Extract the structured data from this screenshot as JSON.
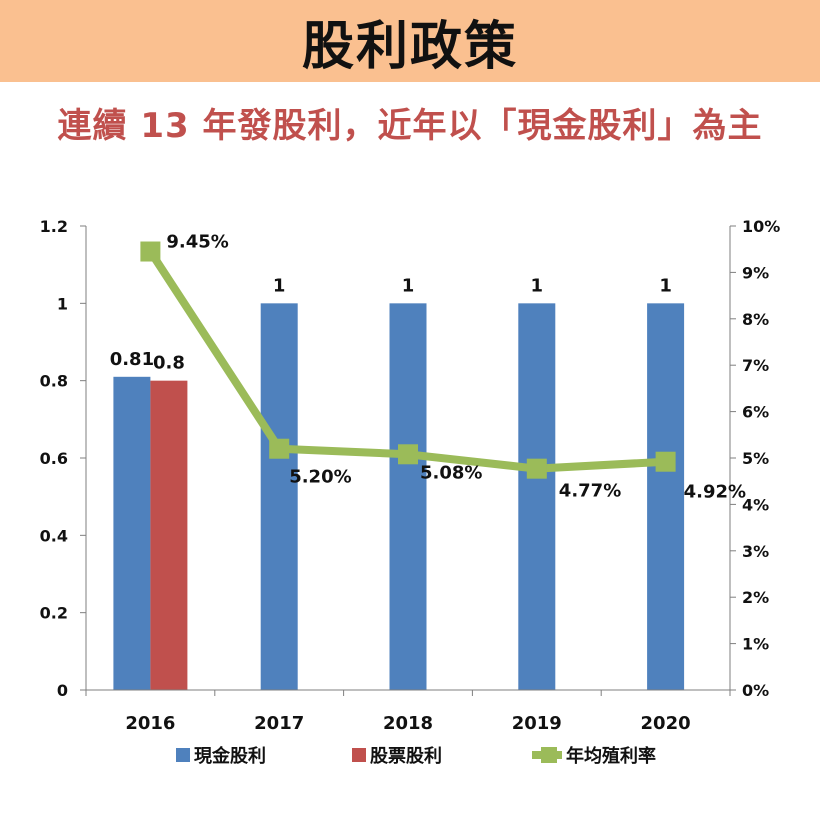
{
  "header": {
    "title": "股利政策"
  },
  "subtitle": "連續 13 年發股利，近年以「現金股利」為主",
  "chart_data": {
    "type": "bar",
    "categories": [
      "2016",
      "2017",
      "2018",
      "2019",
      "2020"
    ],
    "series": [
      {
        "name": "現金股利",
        "kind": "bar",
        "axis": "left",
        "color": "#4f81bd",
        "values": [
          0.81,
          1,
          1,
          1,
          1
        ],
        "labels": [
          "0.81",
          "1",
          "1",
          "1",
          "1"
        ]
      },
      {
        "name": "股票股利",
        "kind": "bar",
        "axis": "left",
        "color": "#c0504d",
        "values": [
          0.8,
          null,
          null,
          null,
          null
        ],
        "labels": [
          "0.8",
          "",
          "",
          "",
          ""
        ]
      },
      {
        "name": "年均殖利率",
        "kind": "line",
        "axis": "right",
        "color": "#9bbb59",
        "values": [
          9.45,
          5.2,
          5.08,
          4.77,
          4.92
        ],
        "labels": [
          "9.45%",
          "5.20%",
          "5.08%",
          "4.77%",
          "4.92%"
        ]
      }
    ],
    "left_axis": {
      "ylim": [
        0,
        1.2
      ],
      "ticks": [
        "0",
        "0.2",
        "0.4",
        "0.6",
        "0.8",
        "1",
        "1.2"
      ]
    },
    "right_axis": {
      "ylim": [
        0,
        10
      ],
      "ticks": [
        "0%",
        "1%",
        "2%",
        "3%",
        "4%",
        "5%",
        "6%",
        "7%",
        "8%",
        "9%",
        "10%"
      ]
    },
    "grid": false,
    "legend": "bottom"
  }
}
